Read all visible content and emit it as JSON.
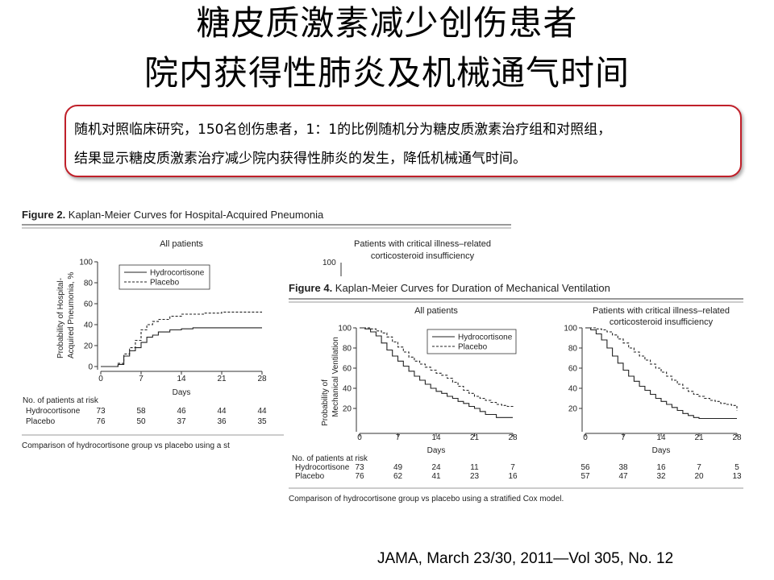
{
  "slide": {
    "title_line1": "糖皮质激素减少创伤患者",
    "title_line2": "院内获得性肺炎及机械通气时间",
    "box_line1": "随机对照临床研究，150名创伤患者，1：1的比例随机分为糖皮质激素治疗组和对照组，",
    "box_line2": "结果显示糖皮质激素治疗减少院内获得性肺炎的发生，降低机械通气时间。",
    "citation": "JAMA, March 23/30, 2011—Vol 305, No. 12"
  },
  "figure2": {
    "label": "Figure 2.",
    "title": " Kaplan-Meier Curves for Hospital-Acquired Pneumonia",
    "panel1_title": "All patients",
    "panel2_title_line1": "Patients with critical illness–related",
    "panel2_title_line2": "corticosteroid insufficiency",
    "panel2_ytick": "100",
    "ylabel_line1": "Probability of Hospital-",
    "ylabel_line2": "Acquired Pneumonia, %",
    "footer": "Comparison of hydrocortisone group vs placebo using a st"
  },
  "figure4": {
    "label": "Figure 4.",
    "title": " Kaplan-Meier Curves for Duration of Mechanical Ventilation",
    "panel1_title": "All patients",
    "panel2_title_line1": "Patients with critical illness–related",
    "panel2_title_line2": "corticosteroid insufficiency",
    "ylabel_line1": "Probability of",
    "ylabel_line2": "Mechanical Ventilation",
    "footer": "Comparison of hydrocortisone group vs placebo using a stratified Cox model."
  },
  "chart_data": [
    {
      "id": "fig2-all",
      "type": "line",
      "step": true,
      "title": "All patients",
      "xlabel": "Days",
      "ylabel": "Probability of Hospital-Acquired Pneumonia, %",
      "xlim": [
        0,
        28
      ],
      "ylim": [
        0,
        100
      ],
      "xticks": [
        0,
        7,
        14,
        21,
        28
      ],
      "yticks": [
        0,
        20,
        40,
        60,
        80,
        100
      ],
      "legend": "top-left",
      "series": [
        {
          "name": "Hydrocortisone",
          "style": "solid",
          "x": [
            0,
            3,
            4,
            5,
            6,
            7,
            8,
            9,
            10,
            12,
            14,
            16,
            28
          ],
          "y": [
            0,
            2,
            10,
            15,
            18,
            23,
            28,
            30,
            33,
            35,
            36,
            37,
            37
          ]
        },
        {
          "name": "Placebo",
          "style": "dashed",
          "x": [
            0,
            3,
            4,
            5,
            6,
            7,
            8,
            9,
            10,
            12,
            14,
            16,
            18,
            21,
            28
          ],
          "y": [
            0,
            3,
            12,
            18,
            25,
            35,
            40,
            43,
            45,
            48,
            50,
            50,
            51,
            52,
            52
          ]
        }
      ],
      "risk_table": {
        "header": "No. of patients at risk",
        "rows": [
          {
            "group": "Hydrocortisone",
            "values": [
              "73",
              "58",
              "46",
              "44",
              "44"
            ]
          },
          {
            "group": "Placebo",
            "values": [
              "76",
              "50",
              "37",
              "36",
              "35"
            ]
          }
        ]
      }
    },
    {
      "id": "fig4-all",
      "type": "line",
      "step": true,
      "title": "All patients",
      "xlabel": "Days",
      "ylabel": "Probability of Mechanical Ventilation",
      "xlim": [
        0,
        28
      ],
      "ylim": [
        0,
        100
      ],
      "xticks": [
        0,
        7,
        14,
        21,
        28
      ],
      "yticks": [
        20,
        40,
        60,
        80,
        100
      ],
      "legend": "top-right",
      "series": [
        {
          "name": "Hydrocortisone",
          "style": "solid",
          "x": [
            0,
            1,
            2,
            3,
            4,
            5,
            6,
            7,
            8,
            9,
            10,
            11,
            12,
            13,
            14,
            15,
            16,
            17,
            18,
            19,
            20,
            21,
            22,
            23,
            25,
            28
          ],
          "y": [
            100,
            99,
            96,
            92,
            85,
            78,
            72,
            67,
            62,
            57,
            52,
            48,
            44,
            40,
            37,
            35,
            32,
            30,
            27,
            25,
            22,
            20,
            17,
            14,
            11,
            11
          ]
        },
        {
          "name": "Placebo",
          "style": "dashed",
          "x": [
            0,
            1,
            2,
            3,
            4,
            5,
            6,
            7,
            8,
            9,
            10,
            11,
            12,
            13,
            14,
            15,
            16,
            17,
            18,
            19,
            20,
            21,
            22,
            23,
            24,
            25,
            26,
            27,
            28
          ],
          "y": [
            100,
            100,
            99,
            97,
            95,
            91,
            86,
            81,
            76,
            71,
            67,
            64,
            61,
            58,
            55,
            53,
            50,
            46,
            42,
            38,
            35,
            32,
            30,
            28,
            26,
            24,
            23,
            22,
            20
          ]
        }
      ],
      "risk_table": {
        "header": "No. of patients at risk",
        "rows": [
          {
            "group": "Hydrocortisone",
            "values": [
              "73",
              "49",
              "24",
              "11",
              "7"
            ]
          },
          {
            "group": "Placebo",
            "values": [
              "76",
              "62",
              "41",
              "23",
              "16"
            ]
          }
        ]
      }
    },
    {
      "id": "fig4-ciri",
      "type": "line",
      "step": true,
      "title": "Patients with critical illness–related corticosteroid insufficiency",
      "xlabel": "Days",
      "xlim": [
        0,
        28
      ],
      "ylim": [
        0,
        100
      ],
      "xticks": [
        0,
        7,
        14,
        21,
        28
      ],
      "yticks": [
        20,
        40,
        60,
        80,
        100
      ],
      "series": [
        {
          "name": "Hydrocortisone",
          "style": "solid",
          "x": [
            0,
            1,
            2,
            3,
            4,
            5,
            6,
            7,
            8,
            9,
            10,
            11,
            12,
            13,
            14,
            15,
            16,
            17,
            18,
            19,
            20,
            21,
            22,
            28
          ],
          "y": [
            100,
            98,
            94,
            88,
            80,
            72,
            65,
            58,
            52,
            47,
            42,
            38,
            34,
            30,
            27,
            24,
            21,
            18,
            15,
            13,
            11,
            10,
            10,
            10
          ]
        },
        {
          "name": "Placebo",
          "style": "dashed",
          "x": [
            0,
            1,
            2,
            3,
            4,
            5,
            6,
            7,
            8,
            9,
            10,
            11,
            12,
            13,
            14,
            15,
            16,
            17,
            18,
            19,
            20,
            21,
            22,
            23,
            24,
            25,
            26,
            27,
            28
          ],
          "y": [
            100,
            100,
            99,
            98,
            96,
            93,
            89,
            85,
            80,
            76,
            72,
            68,
            64,
            60,
            56,
            52,
            48,
            44,
            40,
            37,
            34,
            32,
            30,
            28,
            27,
            25,
            24,
            23,
            18
          ]
        }
      ],
      "risk_table": {
        "rows": [
          {
            "group": "Hydrocortisone",
            "values": [
              "56",
              "38",
              "16",
              "7",
              "5"
            ]
          },
          {
            "group": "Placebo",
            "values": [
              "57",
              "47",
              "32",
              "20",
              "13"
            ]
          }
        ]
      }
    }
  ]
}
